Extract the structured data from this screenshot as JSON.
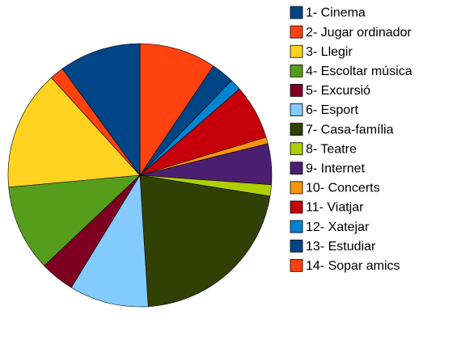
{
  "chart_data": {
    "type": "pie",
    "categories": [
      "1- Cinema",
      "2- Jugar ordinador",
      "3- Llegir",
      "4- Escoltar música",
      "5- Excursió",
      "6- Esport",
      "7- Casa-família",
      "8- Teatre",
      "9- Internet",
      "10- Concerts",
      "11- Viatjar",
      "12- Xatejar",
      "13- Estudiar",
      "14- Sopar amics"
    ],
    "values": [
      10,
      9.4,
      14.7,
      10.6,
      4.2,
      9.7,
      21.4,
      1.4,
      5,
      0.8,
      6.7,
      1.4,
      2.8,
      1.7
    ],
    "colors": [
      "#004586",
      "#ff420e",
      "#ffd320",
      "#579d1c",
      "#7e0021",
      "#83caff",
      "#314004",
      "#aecf00",
      "#4b1f6f",
      "#ff950e",
      "#c5000b",
      "#0084d1",
      "#004586",
      "#ff420e"
    ],
    "legend": "right"
  }
}
